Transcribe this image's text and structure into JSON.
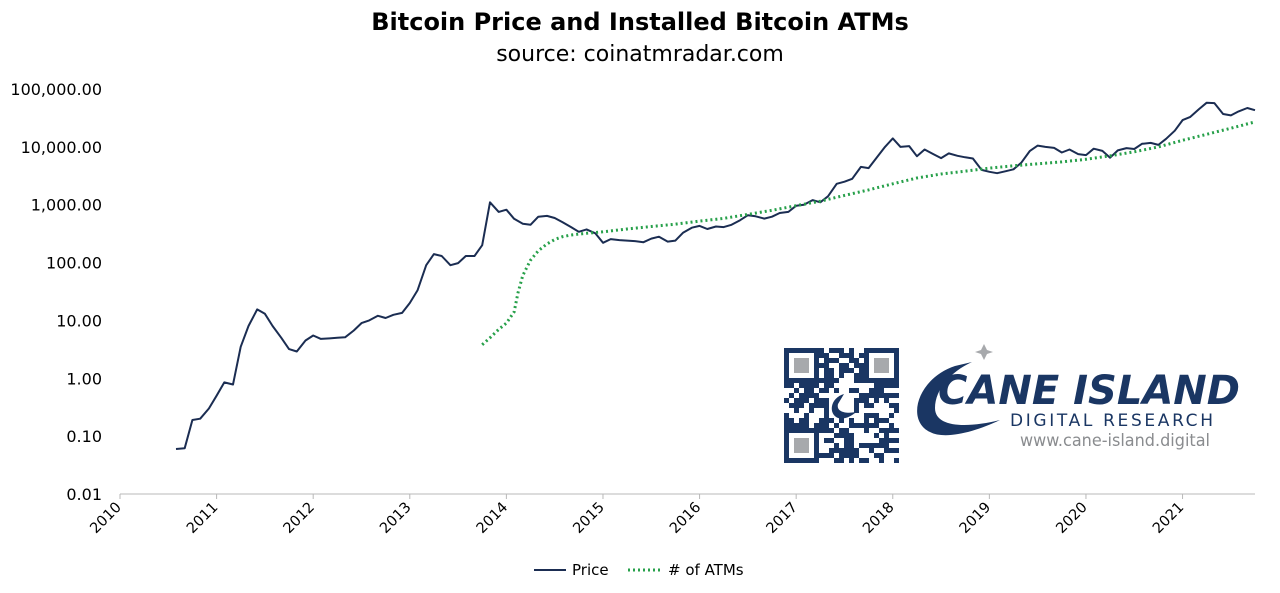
{
  "chart_data": {
    "type": "line",
    "title": "Bitcoin Price and Installed Bitcoin ATMs",
    "subtitle": "source:  coinatmradar.com",
    "yscale": "log",
    "ylim": [
      0.01,
      100000
    ],
    "xlim": [
      2010,
      2021.75
    ],
    "y_ticks": [
      "0.01",
      "0.10",
      "1.00",
      "10.00",
      "100.00",
      "1,000.00",
      "10,000.00",
      "100,000.00"
    ],
    "x_ticks": [
      "2010",
      "2011",
      "2012",
      "2013",
      "2014",
      "2015",
      "2016",
      "2017",
      "2018",
      "2019",
      "2020",
      "2021"
    ],
    "legend": {
      "position": "bottom",
      "entries": [
        "Price",
        "# of ATMs"
      ]
    },
    "grid": false,
    "series": [
      {
        "name": "Price",
        "style": "solid",
        "color": "#1b2d52",
        "points": [
          [
            2010.58,
            0.06
          ],
          [
            2010.67,
            0.062
          ],
          [
            2010.75,
            0.19
          ],
          [
            2010.83,
            0.2
          ],
          [
            2010.92,
            0.3
          ],
          [
            2011.0,
            0.5
          ],
          [
            2011.08,
            0.85
          ],
          [
            2011.17,
            0.78
          ],
          [
            2011.25,
            3.5
          ],
          [
            2011.33,
            8
          ],
          [
            2011.42,
            15.5
          ],
          [
            2011.5,
            13
          ],
          [
            2011.58,
            8
          ],
          [
            2011.67,
            5
          ],
          [
            2011.75,
            3.2
          ],
          [
            2011.83,
            2.9
          ],
          [
            2011.92,
            4.5
          ],
          [
            2012.0,
            5.5
          ],
          [
            2012.08,
            4.8
          ],
          [
            2012.17,
            4.9
          ],
          [
            2012.25,
            5
          ],
          [
            2012.33,
            5.1
          ],
          [
            2012.42,
            6.7
          ],
          [
            2012.5,
            9
          ],
          [
            2012.58,
            10
          ],
          [
            2012.67,
            12
          ],
          [
            2012.75,
            11
          ],
          [
            2012.83,
            12.5
          ],
          [
            2012.92,
            13.5
          ],
          [
            2013.0,
            20
          ],
          [
            2013.08,
            33
          ],
          [
            2013.17,
            90
          ],
          [
            2013.25,
            140
          ],
          [
            2013.33,
            130
          ],
          [
            2013.42,
            90
          ],
          [
            2013.5,
            98
          ],
          [
            2013.58,
            130
          ],
          [
            2013.67,
            130
          ],
          [
            2013.75,
            200
          ],
          [
            2013.83,
            1100
          ],
          [
            2013.92,
            750
          ],
          [
            2014.0,
            820
          ],
          [
            2014.08,
            570
          ],
          [
            2014.17,
            470
          ],
          [
            2014.25,
            450
          ],
          [
            2014.33,
            620
          ],
          [
            2014.42,
            640
          ],
          [
            2014.5,
            590
          ],
          [
            2014.58,
            500
          ],
          [
            2014.67,
            410
          ],
          [
            2014.75,
            340
          ],
          [
            2014.83,
            375
          ],
          [
            2014.92,
            320
          ],
          [
            2015.0,
            220
          ],
          [
            2015.08,
            255
          ],
          [
            2015.17,
            245
          ],
          [
            2015.25,
            240
          ],
          [
            2015.33,
            235
          ],
          [
            2015.42,
            225
          ],
          [
            2015.5,
            260
          ],
          [
            2015.58,
            280
          ],
          [
            2015.67,
            230
          ],
          [
            2015.75,
            240
          ],
          [
            2015.83,
            330
          ],
          [
            2015.92,
            400
          ],
          [
            2016.0,
            430
          ],
          [
            2016.08,
            380
          ],
          [
            2016.17,
            420
          ],
          [
            2016.25,
            410
          ],
          [
            2016.33,
            450
          ],
          [
            2016.42,
            540
          ],
          [
            2016.5,
            660
          ],
          [
            2016.58,
            630
          ],
          [
            2016.67,
            575
          ],
          [
            2016.75,
            620
          ],
          [
            2016.83,
            720
          ],
          [
            2016.92,
            750
          ],
          [
            2017.0,
            960
          ],
          [
            2017.08,
            1000
          ],
          [
            2017.17,
            1200
          ],
          [
            2017.25,
            1100
          ],
          [
            2017.33,
            1400
          ],
          [
            2017.42,
            2300
          ],
          [
            2017.5,
            2500
          ],
          [
            2017.58,
            2800
          ],
          [
            2017.67,
            4500
          ],
          [
            2017.75,
            4300
          ],
          [
            2017.83,
            6400
          ],
          [
            2017.92,
            10000
          ],
          [
            2018.0,
            14000
          ],
          [
            2018.08,
            10000
          ],
          [
            2018.17,
            10300
          ],
          [
            2018.25,
            6900
          ],
          [
            2018.33,
            9000
          ],
          [
            2018.42,
            7500
          ],
          [
            2018.5,
            6400
          ],
          [
            2018.58,
            7700
          ],
          [
            2018.67,
            7000
          ],
          [
            2018.75,
            6600
          ],
          [
            2018.83,
            6300
          ],
          [
            2018.92,
            4000
          ],
          [
            2019.0,
            3700
          ],
          [
            2019.08,
            3500
          ],
          [
            2019.17,
            3800
          ],
          [
            2019.25,
            4100
          ],
          [
            2019.33,
            5300
          ],
          [
            2019.42,
            8500
          ],
          [
            2019.5,
            10500
          ],
          [
            2019.58,
            10000
          ],
          [
            2019.67,
            9600
          ],
          [
            2019.75,
            8000
          ],
          [
            2019.83,
            9000
          ],
          [
            2019.92,
            7500
          ],
          [
            2020.0,
            7200
          ],
          [
            2020.08,
            9300
          ],
          [
            2020.17,
            8500
          ],
          [
            2020.25,
            6500
          ],
          [
            2020.33,
            8700
          ],
          [
            2020.42,
            9500
          ],
          [
            2020.5,
            9200
          ],
          [
            2020.58,
            11300
          ],
          [
            2020.67,
            11700
          ],
          [
            2020.75,
            10800
          ],
          [
            2020.83,
            13800
          ],
          [
            2020.92,
            19000
          ],
          [
            2021.0,
            29000
          ],
          [
            2021.08,
            33000
          ],
          [
            2021.17,
            45000
          ],
          [
            2021.25,
            58000
          ],
          [
            2021.33,
            57000
          ],
          [
            2021.42,
            37000
          ],
          [
            2021.5,
            35000
          ],
          [
            2021.58,
            41000
          ],
          [
            2021.67,
            47000
          ],
          [
            2021.75,
            43000
          ]
        ]
      },
      {
        "name": "# of ATMs",
        "style": "dotted",
        "color": "#27a04a",
        "points": [
          [
            2013.75,
            3.8
          ],
          [
            2013.83,
            5
          ],
          [
            2013.92,
            7
          ],
          [
            2014.0,
            9
          ],
          [
            2014.08,
            14
          ],
          [
            2014.12,
            30
          ],
          [
            2014.17,
            60
          ],
          [
            2014.25,
            110
          ],
          [
            2014.33,
            160
          ],
          [
            2014.42,
            210
          ],
          [
            2014.5,
            250
          ],
          [
            2014.58,
            280
          ],
          [
            2014.67,
            300
          ],
          [
            2014.75,
            310
          ],
          [
            2014.83,
            320
          ],
          [
            2015.0,
            340
          ],
          [
            2015.25,
            380
          ],
          [
            2015.5,
            420
          ],
          [
            2015.75,
            460
          ],
          [
            2016.0,
            520
          ],
          [
            2016.25,
            580
          ],
          [
            2016.5,
            680
          ],
          [
            2016.75,
            800
          ],
          [
            2017.0,
            960
          ],
          [
            2017.25,
            1150
          ],
          [
            2017.5,
            1450
          ],
          [
            2017.75,
            1800
          ],
          [
            2018.0,
            2300
          ],
          [
            2018.25,
            2900
          ],
          [
            2018.5,
            3400
          ],
          [
            2018.75,
            3800
          ],
          [
            2019.0,
            4300
          ],
          [
            2019.25,
            4700
          ],
          [
            2019.5,
            5100
          ],
          [
            2019.75,
            5500
          ],
          [
            2020.0,
            6100
          ],
          [
            2020.25,
            7000
          ],
          [
            2020.5,
            8200
          ],
          [
            2020.75,
            10000
          ],
          [
            2021.0,
            13000
          ],
          [
            2021.25,
            16500
          ],
          [
            2021.5,
            21000
          ],
          [
            2021.75,
            27000
          ]
        ]
      }
    ]
  },
  "logo": {
    "company": "CANE ISLAND",
    "tagline": "DIGITAL   RESEARCH",
    "url": "www.cane-island.digital",
    "qr_caption": "Q R code",
    "colors": {
      "navy": "#1a3663",
      "gray": "#a7a9ac"
    }
  }
}
